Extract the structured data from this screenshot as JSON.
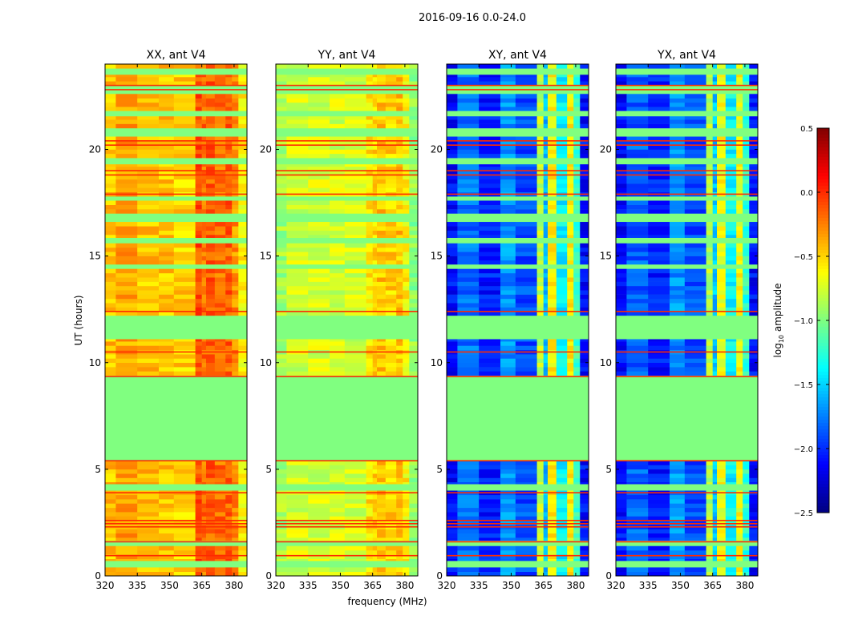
{
  "chart_data": {
    "type": "heatmap",
    "title": "2016-09-16 0.0-24.0",
    "xlabel": "frequency (MHz)",
    "ylabel": "UT (hours)",
    "xlim": [
      320,
      386
    ],
    "ylim": [
      0,
      24
    ],
    "xticks": [
      320,
      335,
      350,
      365,
      380
    ],
    "xtick_labels": [
      "320",
      "335",
      "350",
      "365",
      "380"
    ],
    "yticks": [
      0,
      5,
      10,
      15,
      20
    ],
    "ytick_labels": [
      "0",
      "5",
      "10",
      "15",
      "20"
    ],
    "flagged_value": -1.0,
    "flagged_intervals_hours": [
      [
        0.5,
        0.7
      ],
      [
        1.45,
        1.65
      ],
      [
        4.1,
        4.3
      ],
      [
        5.4,
        9.3
      ],
      [
        11.1,
        12.2
      ],
      [
        14.4,
        14.6
      ],
      [
        15.6,
        15.85
      ],
      [
        16.6,
        16.9
      ],
      [
        17.6,
        17.75
      ],
      [
        19.3,
        19.55
      ],
      [
        20.6,
        20.9
      ],
      [
        21.55,
        21.8
      ],
      [
        22.65,
        22.9
      ],
      [
        23.5,
        23.7
      ]
    ],
    "outlier_lines_hours": [
      0.95,
      1.6,
      2.3,
      2.45,
      2.6,
      3.9,
      5.4,
      9.35,
      10.5,
      12.4,
      17.9,
      18.8,
      19.0,
      20.2,
      20.4,
      22.8,
      23.0
    ],
    "outlier_value": 0.0,
    "freq_bin_edges_mhz": [
      320,
      325,
      335,
      345,
      352,
      362,
      365,
      367,
      371,
      376,
      379,
      382,
      386
    ],
    "panels": [
      {
        "title": "XX, ant V4",
        "profile": [
          -0.45,
          -0.35,
          -0.45,
          -0.45,
          -0.5,
          -0.1,
          -0.2,
          -0.15,
          -0.2,
          -0.15,
          -0.3,
          -0.6
        ]
      },
      {
        "title": "YY, ant V4",
        "profile": [
          -0.9,
          -0.75,
          -0.75,
          -0.75,
          -0.75,
          -0.55,
          -0.5,
          -0.45,
          -0.5,
          -0.45,
          -0.6,
          -0.95
        ]
      },
      {
        "title": "XY, ant V4",
        "profile": [
          -2.1,
          -1.8,
          -2.05,
          -1.7,
          -1.9,
          -0.8,
          -1.6,
          -0.6,
          -1.4,
          -0.6,
          -1.2,
          -2.1
        ]
      },
      {
        "title": "YX, ant V4",
        "profile": [
          -2.1,
          -1.85,
          -2.05,
          -1.7,
          -1.9,
          -0.85,
          -1.55,
          -0.65,
          -1.4,
          -0.65,
          -1.25,
          -2.1
        ]
      }
    ],
    "colorbar": {
      "label": "log10 amplitude",
      "range": [
        -2.5,
        0.5
      ],
      "ticks": [
        0.5,
        0.0,
        -0.5,
        -1.0,
        -1.5,
        -2.0,
        -2.5
      ],
      "tick_labels": [
        "0.5",
        "0.0",
        "−0.5",
        "−1.0",
        "−1.5",
        "−2.0",
        "−2.5"
      ],
      "colormap": "jet"
    }
  }
}
